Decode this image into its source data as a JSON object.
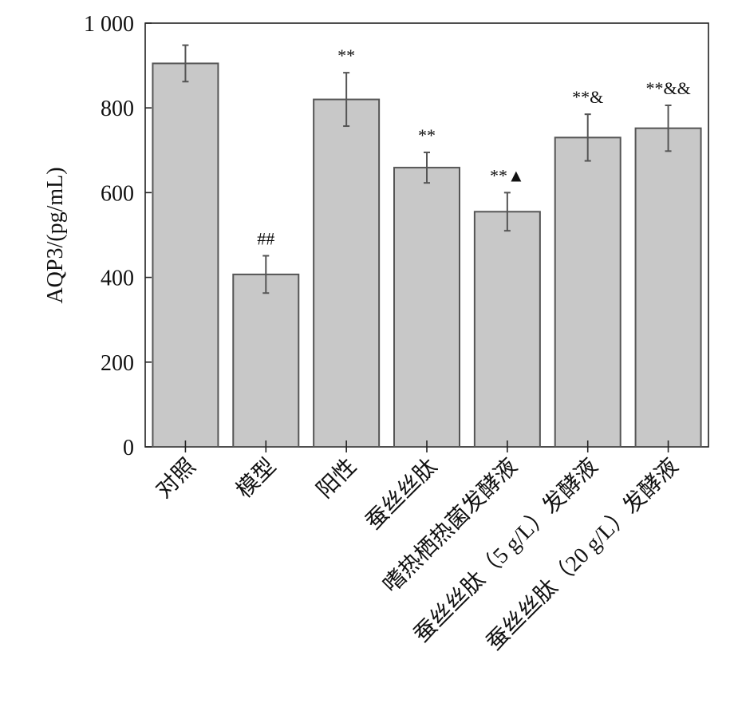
{
  "chart_data": {
    "type": "bar",
    "categories": [
      "对照",
      "模型",
      "阳性",
      "蚕丝丝肽",
      "嗜热栖热菌发酵液",
      "蚕丝丝肽（5 g/L）发酵液",
      "蚕丝丝肽（20 g/L）发酵液"
    ],
    "values": [
      905,
      407,
      820,
      659,
      555,
      730,
      752
    ],
    "errors": [
      43,
      44,
      63,
      36,
      45,
      55,
      54
    ],
    "annotations": [
      "",
      "##",
      "**",
      "**",
      "**▲",
      "**&",
      "**&&"
    ],
    "ylabel": "AQP3/(pg/mL)",
    "xlabel": "",
    "ylim": [
      0,
      1000
    ],
    "yticks": [
      0,
      200,
      400,
      600,
      800,
      1000
    ],
    "ytick_labels": [
      "0",
      "200",
      "400",
      "600",
      "800",
      "1 000"
    ],
    "bar_color": "#c8c8c8",
    "edge_color": "#555555",
    "grid": false
  }
}
